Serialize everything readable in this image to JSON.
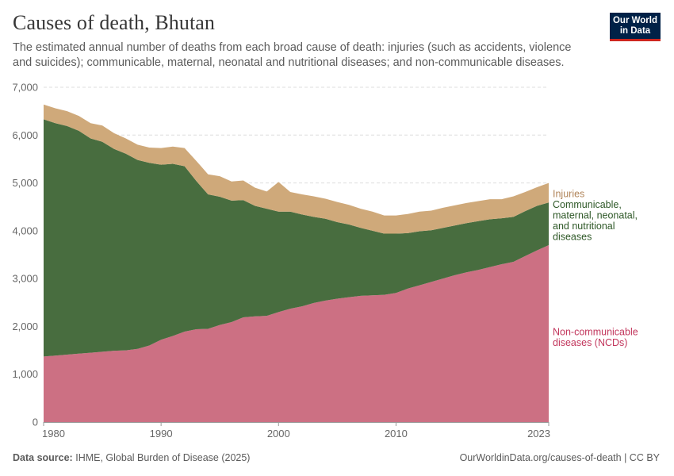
{
  "header": {
    "title": "Causes of death, Bhutan",
    "subtitle": "The estimated annual number of deaths from each broad cause of death: injuries (such as accidents, violence and suicides); communicable, maternal, neonatal and nutritional diseases; and non-communicable diseases."
  },
  "logo": {
    "line1": "Our World",
    "line2": "in Data"
  },
  "footer": {
    "source_label": "Data source:",
    "source_text": "IHME, Global Burden of Disease (2025)",
    "url": "OurWorldinData.org/causes-of-death | CC BY"
  },
  "colors": {
    "ncd": "#cc7083",
    "communicable": "#486d3f",
    "injuries": "#cfa97a",
    "ncd_label": "#c2365c",
    "communicable_label": "#2e5827",
    "injuries_label": "#b1855a"
  },
  "chart_data": {
    "type": "area",
    "stacked": true,
    "title": "Causes of death, Bhutan",
    "xlabel": "",
    "ylabel": "",
    "ylim": [
      0,
      7000
    ],
    "y_ticks": [
      0,
      1000,
      2000,
      3000,
      4000,
      5000,
      6000,
      7000
    ],
    "y_tick_labels": [
      "0",
      "1,000",
      "2,000",
      "3,000",
      "4,000",
      "5,000",
      "6,000",
      "7,000"
    ],
    "x_ticks": [
      1980,
      1990,
      2000,
      2010,
      2023
    ],
    "x_tick_labels": [
      "1980",
      "1990",
      "2000",
      "2010",
      "2023"
    ],
    "grid": true,
    "x": [
      1980,
      1981,
      1982,
      1983,
      1984,
      1985,
      1986,
      1987,
      1988,
      1989,
      1990,
      1991,
      1992,
      1993,
      1994,
      1995,
      1996,
      1997,
      1998,
      1999,
      2000,
      2001,
      2002,
      2003,
      2004,
      2005,
      2006,
      2007,
      2008,
      2009,
      2010,
      2011,
      2012,
      2013,
      2014,
      2015,
      2016,
      2017,
      2018,
      2019,
      2020,
      2021,
      2022,
      2023
    ],
    "series": [
      {
        "name": "Non-communicable diseases (NCDs)",
        "label_lines": [
          "Non-communicable",
          "diseases (NCDs)"
        ],
        "values": [
          1370,
          1390,
          1410,
          1430,
          1450,
          1470,
          1490,
          1500,
          1530,
          1600,
          1720,
          1800,
          1890,
          1940,
          1950,
          2030,
          2090,
          2190,
          2210,
          2220,
          2300,
          2370,
          2420,
          2490,
          2540,
          2580,
          2610,
          2640,
          2650,
          2660,
          2700,
          2790,
          2860,
          2930,
          3000,
          3070,
          3130,
          3180,
          3240,
          3300,
          3350,
          3470,
          3590,
          3700
        ]
      },
      {
        "name": "Communicable, maternal, neonatal, and nutritional diseases",
        "label_lines": [
          "Communicable,",
          "maternal, neonatal,",
          "and nutritional",
          "diseases"
        ],
        "values": [
          4960,
          4860,
          4780,
          4660,
          4480,
          4390,
          4220,
          4110,
          3950,
          3820,
          3660,
          3600,
          3460,
          3100,
          2810,
          2680,
          2540,
          2450,
          2310,
          2240,
          2100,
          2030,
          1920,
          1800,
          1710,
          1600,
          1520,
          1420,
          1350,
          1280,
          1240,
          1160,
          1130,
          1080,
          1060,
          1040,
          1030,
          1020,
          1000,
          960,
          940,
          940,
          930,
          890
        ]
      },
      {
        "name": "Injuries",
        "label_lines": [
          "Injuries"
        ],
        "values": [
          310,
          310,
          310,
          310,
          320,
          340,
          330,
          320,
          320,
          320,
          350,
          360,
          380,
          420,
          420,
          430,
          400,
          410,
          380,
          360,
          620,
          410,
          420,
          430,
          420,
          420,
          410,
          400,
          400,
          380,
          380,
          400,
          410,
          410,
          420,
          420,
          420,
          420,
          420,
          400,
          430,
          400,
          390,
          410
        ]
      }
    ]
  }
}
